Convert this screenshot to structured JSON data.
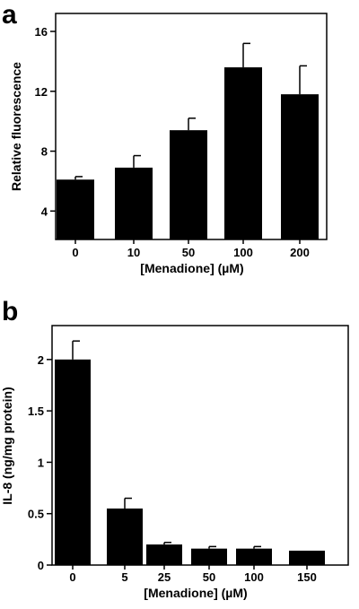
{
  "chart_data": [
    {
      "type": "bar",
      "panel_label": "a",
      "categories": [
        "0",
        "10",
        "50",
        "100",
        "200"
      ],
      "values": [
        6.1,
        6.9,
        9.4,
        13.6,
        11.8
      ],
      "errors": [
        0.2,
        0.8,
        0.8,
        1.6,
        1.9
      ],
      "xlabel": "[Menadione]  (µM)",
      "ylabel": "Relative fluorescence",
      "yticks": [
        "4",
        "8",
        "12",
        "16"
      ],
      "ylim": [
        2.1,
        17.2
      ],
      "grid": false,
      "bar_color": "#000000"
    },
    {
      "type": "bar",
      "panel_label": "b",
      "categories": [
        "0",
        "5",
        "25",
        "50",
        "100",
        "150"
      ],
      "values": [
        2.0,
        0.55,
        0.2,
        0.16,
        0.16,
        0.14
      ],
      "errors": [
        0.18,
        0.1,
        0.02,
        0.02,
        0.02,
        0.0
      ],
      "xlabel": "[Menadione] (µM)",
      "ylabel": "IL-8 (ng/mg protein)",
      "yticks": [
        "0",
        "0.5",
        "1",
        "1.5",
        "2"
      ],
      "ylim": [
        0,
        2.33
      ],
      "grid": false,
      "bar_color": "#000000"
    }
  ]
}
